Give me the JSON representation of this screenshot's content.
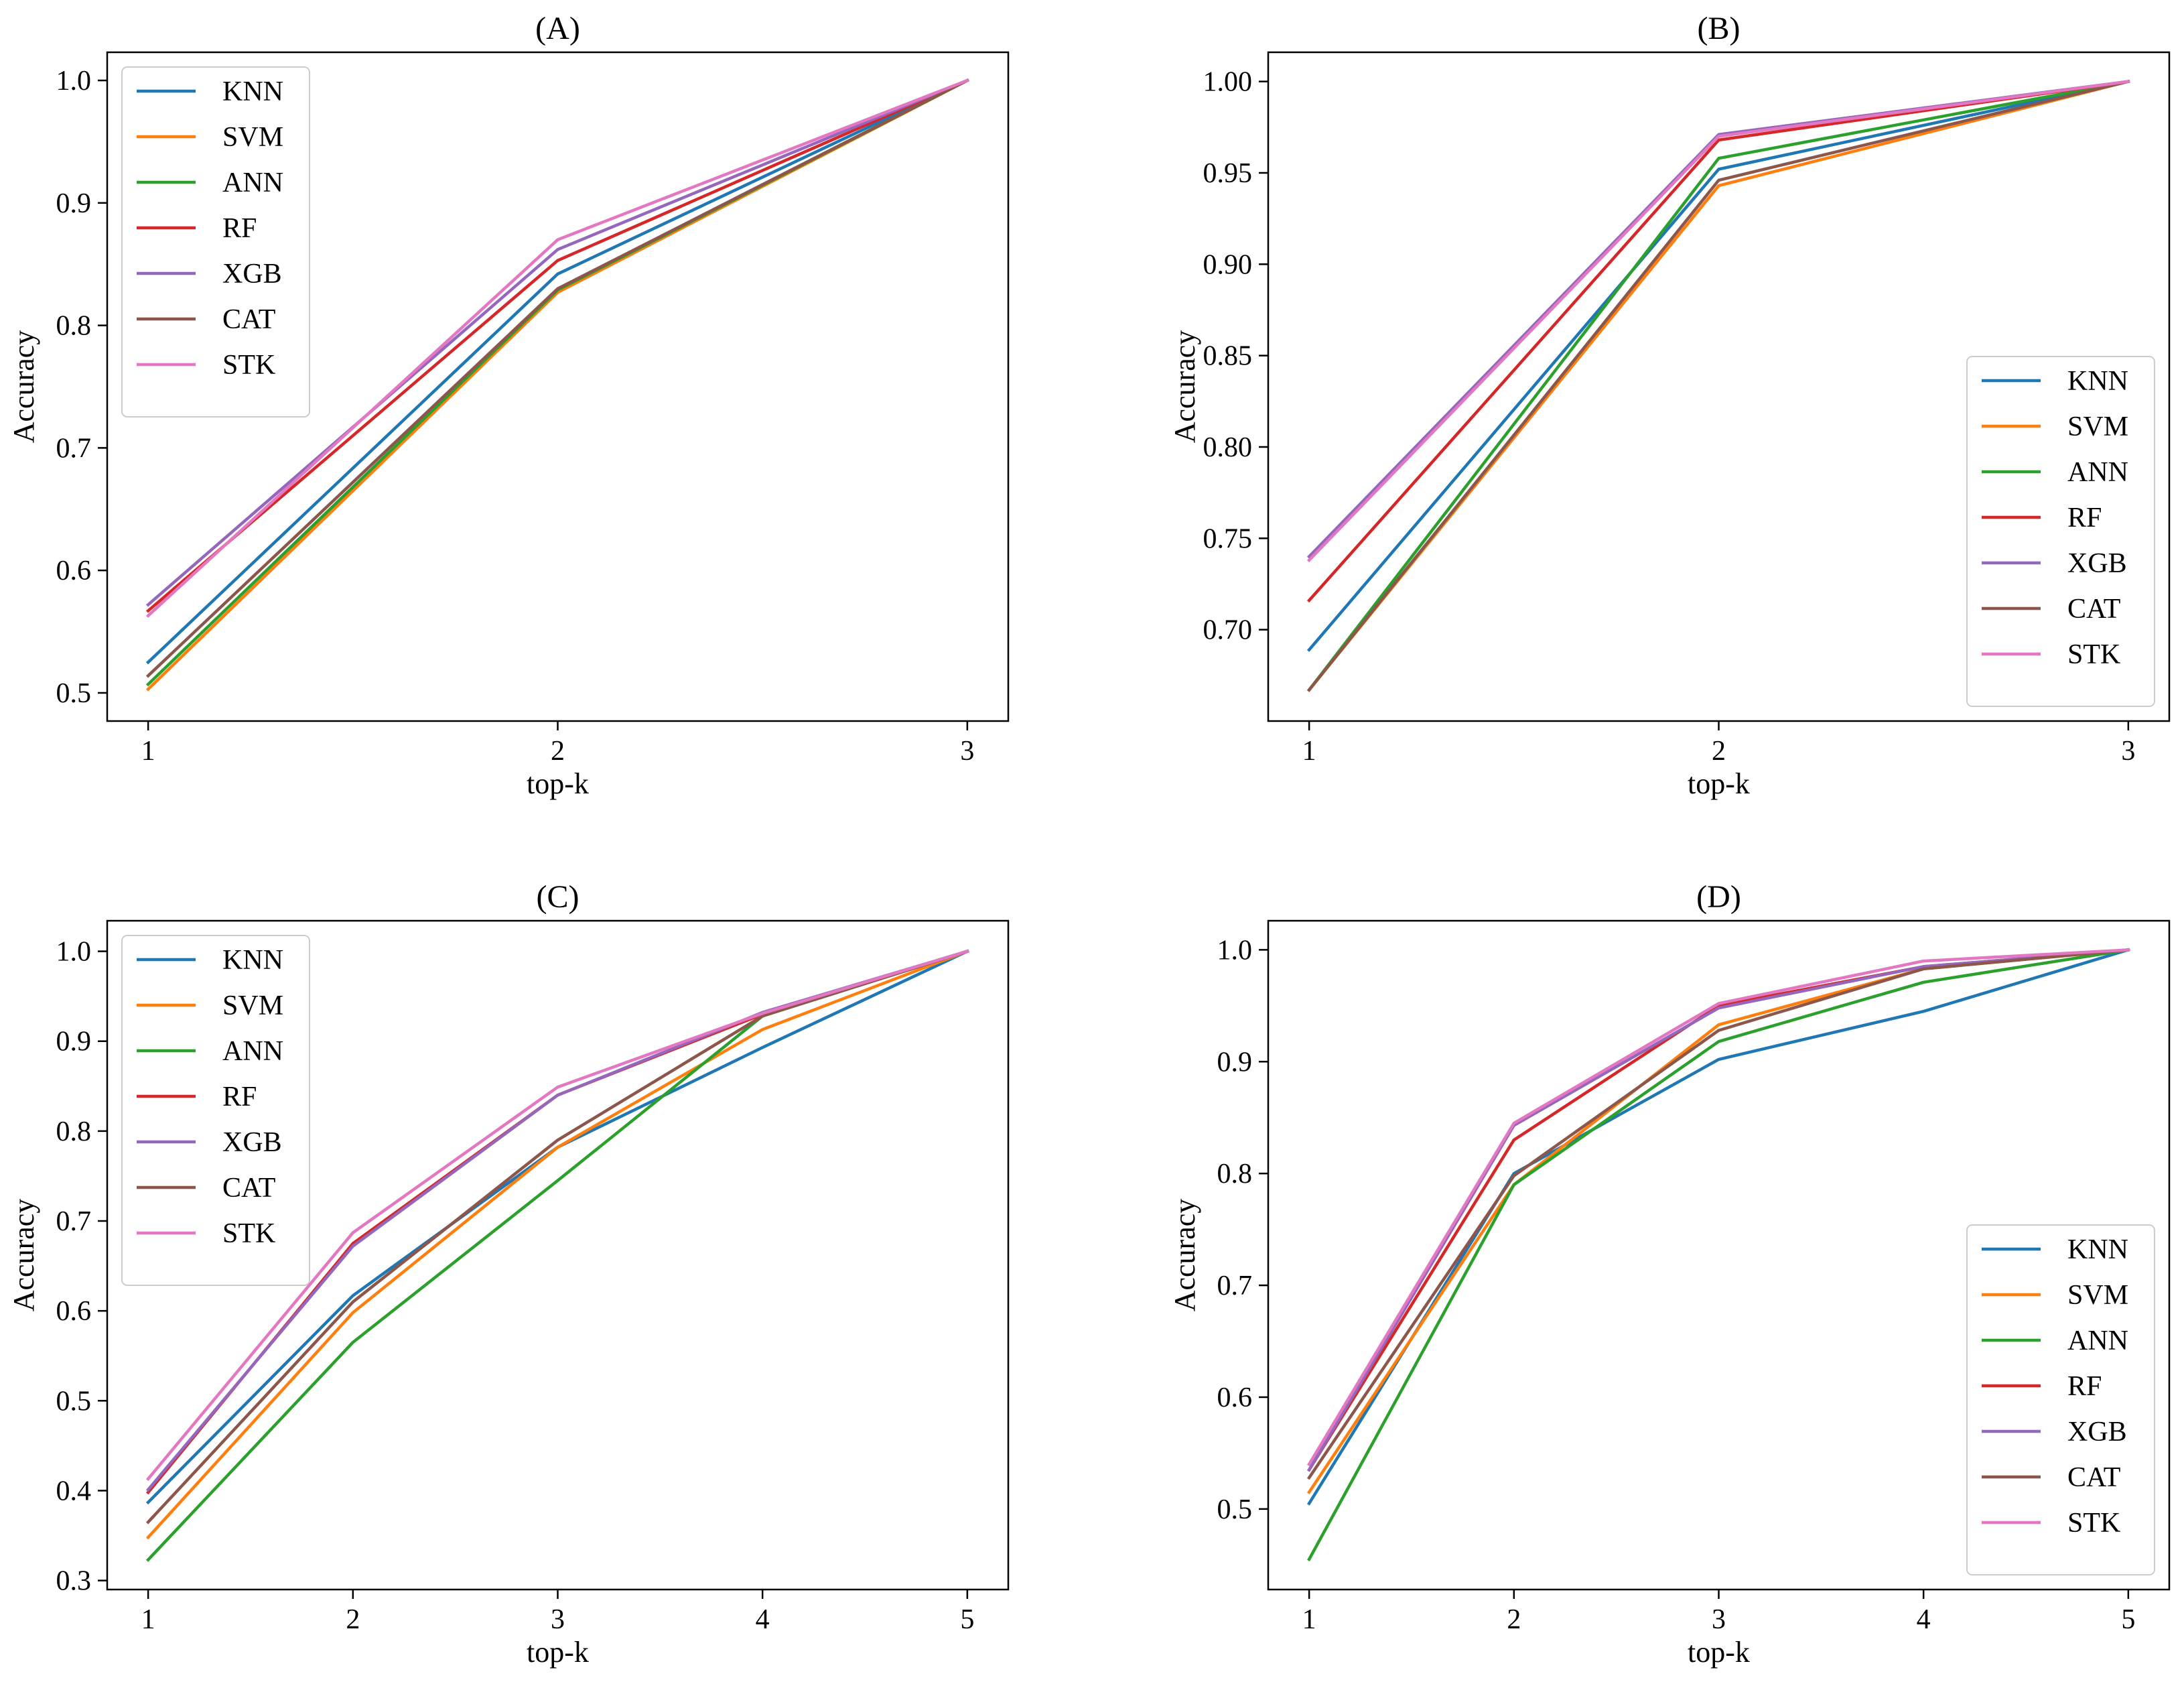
{
  "chart_data": [
    {
      "type": "line",
      "title": "(A)",
      "xlabel": "top-k",
      "ylabel": "Accuracy",
      "x": [
        1,
        2,
        3
      ],
      "xlim": [
        0.9,
        3.1
      ],
      "ylim": [
        0.477,
        1.023
      ],
      "yticks": [
        0.5,
        0.6,
        0.7,
        0.8,
        0.9,
        1.0
      ],
      "ytick_labels": [
        "0.5",
        "0.6",
        "0.7",
        "0.8",
        "0.9",
        "1.0"
      ],
      "legend": "upper-left",
      "series": [
        {
          "name": "KNN",
          "values": [
            0.525,
            0.842,
            1.0
          ]
        },
        {
          "name": "SVM",
          "values": [
            0.503,
            0.827,
            1.0
          ]
        },
        {
          "name": "ANN",
          "values": [
            0.507,
            0.829,
            1.0
          ]
        },
        {
          "name": "RF",
          "values": [
            0.567,
            0.853,
            1.0
          ]
        },
        {
          "name": "XGB",
          "values": [
            0.572,
            0.862,
            1.0
          ]
        },
        {
          "name": "CAT",
          "values": [
            0.514,
            0.83,
            1.0
          ]
        },
        {
          "name": "STK",
          "values": [
            0.563,
            0.87,
            1.0
          ]
        }
      ]
    },
    {
      "type": "line",
      "title": "(B)",
      "xlabel": "top-k",
      "ylabel": "Accuracy",
      "x": [
        1,
        2,
        3
      ],
      "xlim": [
        0.9,
        3.1
      ],
      "ylim": [
        0.65,
        1.016
      ],
      "yticks": [
        0.7,
        0.75,
        0.8,
        0.85,
        0.9,
        0.95,
        1.0
      ],
      "ytick_labels": [
        "0.70",
        "0.75",
        "0.80",
        "0.85",
        "0.90",
        "0.95",
        "1.00"
      ],
      "legend": "lower-right",
      "series": [
        {
          "name": "KNN",
          "values": [
            0.689,
            0.952,
            1.0
          ]
        },
        {
          "name": "SVM",
          "values": [
            0.667,
            0.943,
            1.0
          ]
        },
        {
          "name": "ANN",
          "values": [
            0.667,
            0.958,
            1.0
          ]
        },
        {
          "name": "RF",
          "values": [
            0.716,
            0.968,
            1.0
          ]
        },
        {
          "name": "XGB",
          "values": [
            0.74,
            0.971,
            1.0
          ]
        },
        {
          "name": "CAT",
          "values": [
            0.667,
            0.946,
            1.0
          ]
        },
        {
          "name": "STK",
          "values": [
            0.738,
            0.97,
            1.0
          ]
        }
      ]
    },
    {
      "type": "line",
      "title": "(C)",
      "xlabel": "top-k",
      "ylabel": "Accuracy",
      "x": [
        1,
        2,
        3,
        4,
        5
      ],
      "xlim": [
        0.8,
        5.2
      ],
      "ylim": [
        0.29,
        1.034
      ],
      "yticks": [
        0.3,
        0.4,
        0.5,
        0.6,
        0.7,
        0.8,
        0.9,
        1.0
      ],
      "ytick_labels": [
        "0.3",
        "0.4",
        "0.5",
        "0.6",
        "0.7",
        "0.8",
        "0.9",
        "1.0"
      ],
      "legend": "upper-left",
      "series": [
        {
          "name": "KNN",
          "values": [
            0.387,
            0.617,
            0.782,
            0.893,
            1.0
          ]
        },
        {
          "name": "SVM",
          "values": [
            0.348,
            0.598,
            0.782,
            0.913,
            1.0
          ]
        },
        {
          "name": "ANN",
          "values": [
            0.323,
            0.565,
            0.745,
            0.928,
            1.0
          ]
        },
        {
          "name": "RF",
          "values": [
            0.398,
            0.675,
            0.84,
            0.93,
            1.0
          ]
        },
        {
          "name": "XGB",
          "values": [
            0.401,
            0.672,
            0.84,
            0.932,
            1.0
          ]
        },
        {
          "name": "CAT",
          "values": [
            0.365,
            0.61,
            0.79,
            0.928,
            1.0
          ]
        },
        {
          "name": "STK",
          "values": [
            0.413,
            0.687,
            0.849,
            0.931,
            1.0
          ]
        }
      ]
    },
    {
      "type": "line",
      "title": "(D)",
      "xlabel": "top-k",
      "ylabel": "Accuracy",
      "x": [
        1,
        2,
        3,
        4,
        5
      ],
      "xlim": [
        0.8,
        5.2
      ],
      "ylim": [
        0.428,
        1.026
      ],
      "yticks": [
        0.5,
        0.6,
        0.7,
        0.8,
        0.9,
        1.0
      ],
      "ytick_labels": [
        "0.5",
        "0.6",
        "0.7",
        "0.8",
        "0.9",
        "1.0"
      ],
      "legend": "lower-right",
      "series": [
        {
          "name": "KNN",
          "values": [
            0.505,
            0.8,
            0.902,
            0.945,
            1.0
          ]
        },
        {
          "name": "SVM",
          "values": [
            0.515,
            0.79,
            0.933,
            0.983,
            1.0
          ]
        },
        {
          "name": "ANN",
          "values": [
            0.455,
            0.79,
            0.918,
            0.971,
            1.0
          ]
        },
        {
          "name": "RF",
          "values": [
            0.535,
            0.83,
            0.95,
            0.985,
            1.0
          ]
        },
        {
          "name": "XGB",
          "values": [
            0.535,
            0.843,
            0.948,
            0.985,
            1.0
          ]
        },
        {
          "name": "CAT",
          "values": [
            0.528,
            0.798,
            0.928,
            0.983,
            1.0
          ]
        },
        {
          "name": "STK",
          "values": [
            0.54,
            0.845,
            0.952,
            0.99,
            1.0
          ]
        }
      ]
    }
  ],
  "colors": {
    "KNN": "#1f77b4",
    "SVM": "#ff7f0e",
    "ANN": "#2ca02c",
    "RF": "#d62728",
    "XGB": "#9467bd",
    "CAT": "#8c564b",
    "STK": "#e377c2"
  }
}
